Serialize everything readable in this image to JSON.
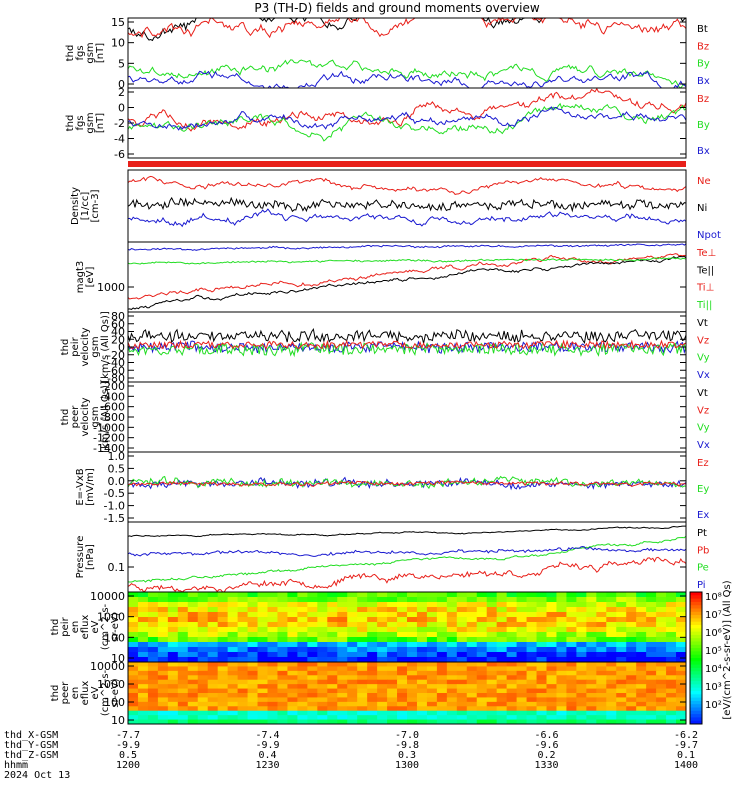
{
  "title": "P3 (TH-D) fields and ground moments overview",
  "colors": {
    "black": "#000000",
    "red": "#e8201a",
    "green": "#22dd22",
    "blue": "#1a1ad0"
  },
  "chart_data": [
    {
      "type": "line",
      "name": "fgs-gsm",
      "ylabel": [
        "thd",
        "fgs",
        "gsm",
        "[nT]"
      ],
      "ylim": [
        0,
        17
      ],
      "yticks": [
        "15",
        "10",
        "5",
        "0"
      ],
      "series": [
        {
          "name": "Bt",
          "color": "black"
        },
        {
          "name": "Bz",
          "color": "red"
        },
        {
          "name": "By",
          "color": "green"
        },
        {
          "name": "Bx",
          "color": "blue"
        }
      ]
    },
    {
      "type": "line",
      "name": "fgs-gsm-zoom",
      "ylabel": [
        "thd",
        "fgs",
        "gsm",
        "[nT]"
      ],
      "ylim": [
        -7,
        2.5
      ],
      "yticks": [
        "2",
        "0",
        "-2",
        "-4",
        "-6"
      ],
      "series": [
        {
          "name": "Bz",
          "color": "red"
        },
        {
          "name": "By",
          "color": "green"
        },
        {
          "name": "Bx",
          "color": "blue"
        }
      ]
    },
    {
      "type": "line",
      "name": "density",
      "ylabel": [
        "Density",
        "[1/cc]",
        "[cm-3]"
      ],
      "ylog": true,
      "yticks": [],
      "series": [
        {
          "name": "Ne",
          "color": "red"
        },
        {
          "name": "Ni",
          "color": "black"
        },
        {
          "name": "Npot",
          "color": "blue"
        }
      ]
    },
    {
      "type": "line",
      "name": "temperature",
      "ylabel": [
        "magt3",
        "[eV]"
      ],
      "ylog": true,
      "yticks": [
        "1000"
      ],
      "series": [
        {
          "name": "Te⊥",
          "color": "red"
        },
        {
          "name": "Te||",
          "color": "black"
        },
        {
          "name": "Ti⊥",
          "color": "red"
        },
        {
          "name": "Ti||",
          "color": "green"
        }
      ]
    },
    {
      "type": "line",
      "name": "peir-velocity",
      "ylabel": [
        "thd",
        "peir",
        "velocity",
        "gsm",
        "[km/s (All Qs)]"
      ],
      "ylim": [
        -80,
        80
      ],
      "yticks": [
        "80",
        "60",
        "40",
        "20",
        "0",
        "-20",
        "-40",
        "-60",
        "-80"
      ],
      "series": [
        {
          "name": "Vt",
          "color": "black"
        },
        {
          "name": "Vz",
          "color": "red"
        },
        {
          "name": "Vy",
          "color": "green"
        },
        {
          "name": "Vx",
          "color": "blue"
        }
      ]
    },
    {
      "type": "line",
      "name": "peer-velocity",
      "ylabel": [
        "thd",
        "peer",
        "velocity",
        "gsm",
        "[km/s (All Qs)]"
      ],
      "ylim": [
        -1500,
        0
      ],
      "yticks": [
        "-200",
        "-400",
        "-600",
        "-800",
        "-1000",
        "-1200",
        "-1400"
      ],
      "series": [
        {
          "name": "Vt",
          "color": "black"
        },
        {
          "name": "Vz",
          "color": "red"
        },
        {
          "name": "Vy",
          "color": "green"
        },
        {
          "name": "Vx",
          "color": "blue"
        }
      ]
    },
    {
      "type": "line",
      "name": "e-field",
      "ylabel": [
        "E=-VxB",
        "[mV/m]"
      ],
      "ylim": [
        -1.6,
        1.3
      ],
      "yticks": [
        "1.0",
        "0.5",
        "0.0",
        "-0.5",
        "-1.0",
        "-1.5"
      ],
      "series": [
        {
          "name": "Ez",
          "color": "red"
        },
        {
          "name": "Ey",
          "color": "green"
        },
        {
          "name": "Ex",
          "color": "blue"
        }
      ]
    },
    {
      "type": "line",
      "name": "pressure",
      "ylabel": [
        "Pressure",
        "[nPa]"
      ],
      "ylog": true,
      "yticks": [
        "0.1"
      ],
      "series": [
        {
          "name": "Pt",
          "color": "black"
        },
        {
          "name": "Pb",
          "color": "red"
        },
        {
          "name": "Pe",
          "color": "green"
        },
        {
          "name": "Pi",
          "color": "blue"
        }
      ]
    },
    {
      "type": "heatmap",
      "name": "peir-spectrogram",
      "ylabel": [
        "thd",
        "peir",
        "en",
        "eflux",
        "eV",
        "(cm^2-s-",
        "sr-eV)"
      ],
      "ylog": true,
      "yticks": [
        "10000",
        "1000",
        "100",
        "10"
      ],
      "colorbar": [
        "10⁸",
        "10⁷",
        "10⁶",
        "10⁵",
        "10⁴",
        "10³",
        "10²"
      ]
    },
    {
      "type": "heatmap",
      "name": "peer-spectrogram",
      "ylabel": [
        "thd",
        "peer",
        "en",
        "eflux",
        "eV",
        "(cm^2-s-",
        "sr-eV)"
      ],
      "ylog": true,
      "yticks": [
        "10000",
        "1000",
        "100",
        "10"
      ],
      "colorbar": [
        "10⁸",
        "10⁷",
        "10⁶",
        "10⁵",
        "10⁴",
        "10³",
        "10²"
      ]
    }
  ],
  "colorbar_label": "[eV/(cm^2-s-sr-eV)] (All Qs)",
  "xaxis": {
    "rows": [
      {
        "label": "thd_X-GSM",
        "values": [
          "-7.7",
          "-7.4",
          "-7.0",
          "-6.6",
          "-6.2"
        ]
      },
      {
        "label": "thd_Y-GSM",
        "values": [
          "-9.9",
          "-9.9",
          "-9.8",
          "-9.6",
          "-9.7"
        ]
      },
      {
        "label": "thd_Z-GSM",
        "values": [
          "0.5",
          "0.4",
          "0.3",
          "0.2",
          "0.1"
        ]
      },
      {
        "label": "hhmm",
        "values": [
          "1200",
          "1230",
          "1300",
          "1330",
          "1400"
        ]
      }
    ],
    "date": "2024 Oct 13"
  }
}
